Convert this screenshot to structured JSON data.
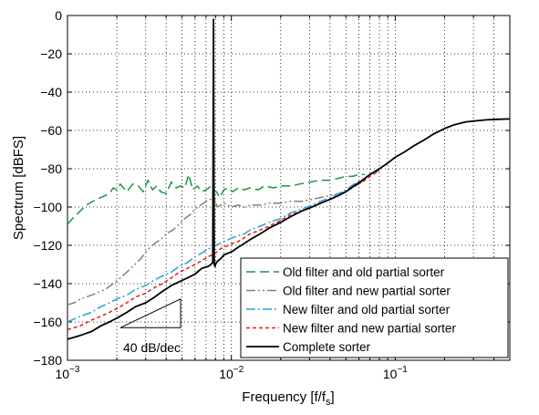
{
  "chart_data": {
    "type": "line",
    "title": "",
    "xlabel": "Frequency [f/f",
    "xlabel_sub": "s",
    "xlabel_close": "]",
    "ylabel": "Spectrum [dBFS]",
    "xscale": "log",
    "xlim": [
      0.001,
      0.5
    ],
    "ylim": [
      -180,
      0
    ],
    "grid": true,
    "legend_position": "bottom-right",
    "x_ticks": [
      {
        "value": 0.001,
        "base": "10",
        "exp": "−3"
      },
      {
        "value": 0.01,
        "base": "10",
        "exp": "−2"
      },
      {
        "value": 0.1,
        "base": "10",
        "exp": "−1"
      }
    ],
    "y_ticks": [
      {
        "value": 0,
        "label": "0"
      },
      {
        "value": -20,
        "label": "−20"
      },
      {
        "value": -40,
        "label": "−40"
      },
      {
        "value": -60,
        "label": "−60"
      },
      {
        "value": -80,
        "label": "−80"
      },
      {
        "value": -100,
        "label": "−100"
      },
      {
        "value": -120,
        "label": "−120"
      },
      {
        "value": -140,
        "label": "−140"
      },
      {
        "value": -160,
        "label": "−160"
      },
      {
        "value": -180,
        "label": "−180"
      }
    ],
    "series": [
      {
        "name": "Old filter and old partial sorter",
        "color": "#1a9641",
        "dash": "10,5",
        "x": [
          0.001,
          0.0011,
          0.0012,
          0.0013,
          0.0015,
          0.0016,
          0.0017,
          0.0018,
          0.0019,
          0.002,
          0.0021,
          0.0023,
          0.0025,
          0.0027,
          0.0029,
          0.0031,
          0.0033,
          0.0035,
          0.0037,
          0.004,
          0.0043,
          0.0046,
          0.0049,
          0.0052,
          0.0055,
          0.0058,
          0.0062,
          0.0066,
          0.007,
          0.0073,
          0.0075,
          0.0078,
          0.0081,
          0.0085,
          0.009,
          0.0095,
          0.0102,
          0.011,
          0.012,
          0.013,
          0.0145,
          0.016,
          0.018,
          0.02,
          0.023,
          0.026,
          0.03,
          0.035,
          0.04,
          0.045,
          0.05,
          0.055,
          0.06,
          0.065
        ],
        "y": [
          -109,
          -105,
          -102,
          -99,
          -96,
          -95,
          -94,
          -93,
          -90,
          -91,
          -88,
          -92,
          -88,
          -89,
          -92,
          -86,
          -91,
          -89,
          -92,
          -93,
          -87,
          -90,
          -89,
          -90,
          -83,
          -91,
          -89,
          -92,
          -91,
          -90,
          -89,
          -91,
          -92,
          -95,
          -91,
          -90,
          -92,
          -90,
          -91,
          -90,
          -91,
          -89,
          -90,
          -89,
          -89,
          -88,
          -87,
          -86,
          -86,
          -85,
          -84,
          -84,
          -83,
          -83
        ]
      },
      {
        "name": "Old filter and new partial sorter",
        "color": "#8a7f78",
        "dash": "10,3,2,3,2,3",
        "x": [
          0.001,
          0.0011,
          0.0012,
          0.0013,
          0.0015,
          0.0017,
          0.0019,
          0.0021,
          0.0023,
          0.0025,
          0.0028,
          0.0031,
          0.0034,
          0.0037,
          0.004,
          0.0044,
          0.0048,
          0.0052,
          0.0056,
          0.006,
          0.0065,
          0.007,
          0.0073,
          0.0076,
          0.0079,
          0.0082,
          0.0086,
          0.009,
          0.0095,
          0.01,
          0.011,
          0.012,
          0.013,
          0.015,
          0.017,
          0.02,
          0.023,
          0.027,
          0.031,
          0.035,
          0.04,
          0.045,
          0.05,
          0.055,
          0.06,
          0.065,
          0.07
        ],
        "y": [
          -151,
          -150,
          -148,
          -147,
          -145,
          -143,
          -140,
          -137,
          -134,
          -131,
          -127,
          -122,
          -119,
          -117,
          -114,
          -112,
          -109,
          -106,
          -104,
          -101,
          -99,
          -97,
          -96,
          -96,
          -96,
          -100,
          -99,
          -98,
          -99,
          -100,
          -99,
          -100,
          -99,
          -99,
          -98,
          -98,
          -97,
          -97,
          -96,
          -95,
          -94,
          -93,
          -92,
          -90,
          -88,
          -86,
          -84
        ]
      },
      {
        "name": "New filter and old partial sorter",
        "color": "#2aa0d8",
        "dash": "10,3,2,3",
        "x": [
          0.001,
          0.0012,
          0.0014,
          0.0016,
          0.0018,
          0.002,
          0.0023,
          0.0026,
          0.003,
          0.0034,
          0.0038,
          0.0043,
          0.0048,
          0.0054,
          0.006,
          0.0066,
          0.0072,
          0.0076,
          0.008,
          0.0085,
          0.009,
          0.0096,
          0.0102,
          0.011,
          0.012,
          0.013,
          0.015,
          0.017,
          0.02,
          0.023,
          0.027,
          0.031,
          0.035,
          0.04,
          0.045,
          0.05,
          0.056,
          0.063,
          0.07,
          0.08
        ],
        "y": [
          -160,
          -157,
          -155,
          -152,
          -150,
          -148,
          -146,
          -143,
          -141,
          -138,
          -136,
          -134,
          -131,
          -129,
          -126,
          -124,
          -122,
          -121,
          -120,
          -119,
          -118,
          -117,
          -116,
          -115,
          -114,
          -112,
          -110,
          -108,
          -106,
          -103,
          -101,
          -99,
          -97,
          -95,
          -93,
          -91,
          -88,
          -86,
          -83,
          -81
        ]
      },
      {
        "name": "New filter and new partial sorter",
        "color": "#e41a1c",
        "dash": "4,3",
        "x": [
          0.001,
          0.0012,
          0.0014,
          0.0016,
          0.0018,
          0.002,
          0.0023,
          0.0026,
          0.003,
          0.0034,
          0.0038,
          0.0043,
          0.0048,
          0.0054,
          0.006,
          0.0066,
          0.0072,
          0.0076,
          0.008,
          0.0085,
          0.009,
          0.0096,
          0.0102,
          0.011,
          0.012,
          0.013,
          0.015,
          0.017,
          0.02,
          0.023,
          0.027,
          0.031,
          0.035,
          0.04,
          0.045,
          0.05,
          0.056,
          0.063,
          0.07,
          0.08
        ],
        "y": [
          -164,
          -162,
          -159,
          -157,
          -155,
          -153,
          -150,
          -147,
          -145,
          -142,
          -140,
          -137,
          -134,
          -132,
          -130,
          -128,
          -126,
          -125,
          -124,
          -122,
          -121,
          -120,
          -119,
          -118,
          -116,
          -114,
          -112,
          -110,
          -107,
          -104,
          -102,
          -100,
          -98,
          -96,
          -94,
          -92,
          -89,
          -87,
          -84,
          -81
        ]
      },
      {
        "name": "Complete sorter",
        "color": "#000000",
        "dash": "",
        "x": [
          0.001,
          0.0012,
          0.0014,
          0.0016,
          0.0018,
          0.002,
          0.0023,
          0.0026,
          0.003,
          0.0034,
          0.0038,
          0.0043,
          0.0048,
          0.0054,
          0.006,
          0.0066,
          0.0072,
          0.0075,
          0.0077,
          0.00778,
          0.00786,
          0.00794,
          0.008,
          0.0081,
          0.0083,
          0.0086,
          0.009,
          0.0096,
          0.0102,
          0.011,
          0.012,
          0.013,
          0.015,
          0.017,
          0.02,
          0.023,
          0.027,
          0.031,
          0.035,
          0.04,
          0.045,
          0.05,
          0.056,
          0.063,
          0.07,
          0.08,
          0.09,
          0.1,
          0.115,
          0.13,
          0.15,
          0.17,
          0.2,
          0.23,
          0.27,
          0.31,
          0.36,
          0.42,
          0.5
        ],
        "y": [
          -169,
          -167,
          -165,
          -162,
          -160,
          -158,
          -155,
          -152,
          -150,
          -147,
          -144,
          -141,
          -139,
          -137,
          -135,
          -132,
          -131,
          -130,
          -129,
          -2,
          -130,
          -131,
          -130,
          -129,
          -128,
          -127,
          -125,
          -124,
          -123,
          -121,
          -119,
          -117,
          -114,
          -111,
          -108,
          -105,
          -102,
          -100,
          -98,
          -96,
          -94,
          -92,
          -89,
          -86,
          -83,
          -80,
          -77,
          -74,
          -71,
          -68,
          -65,
          -62,
          -59,
          -57,
          -55.5,
          -55,
          -54.5,
          -54.2,
          -54
        ]
      }
    ],
    "annotation": {
      "text": "40 dB/dec",
      "triangle": {
        "x1": 0.0021,
        "x2": 0.0049,
        "y_base": -163,
        "y_top": -148
      }
    }
  }
}
